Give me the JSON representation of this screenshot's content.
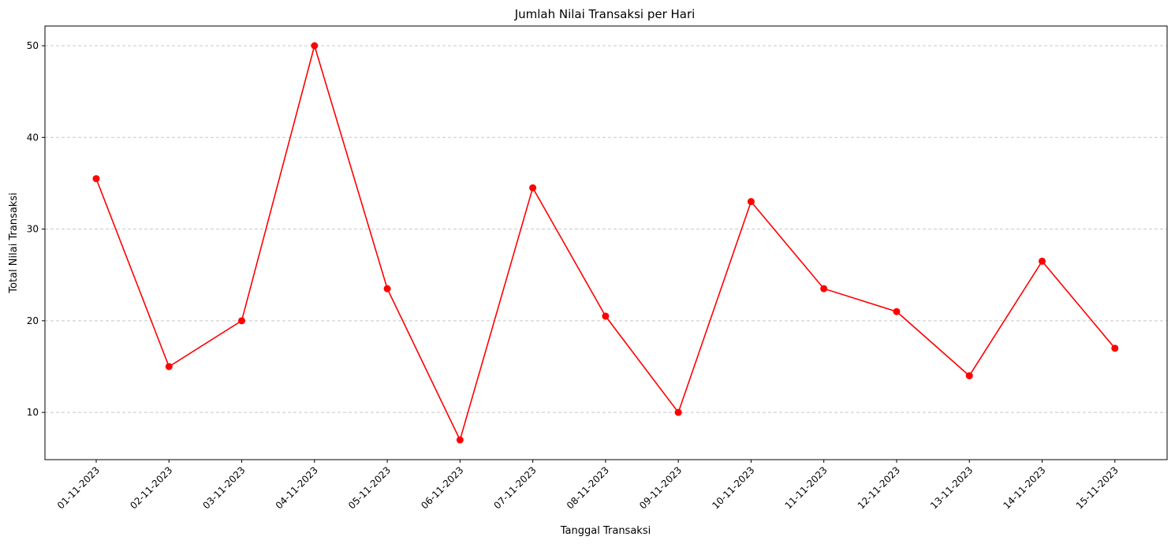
{
  "chart_data": {
    "type": "line",
    "title": "Jumlah Nilai Transaksi per Hari",
    "xlabel": "Tanggal Transaksi",
    "ylabel": "Total Nilai Transaksi",
    "categories": [
      "01-11-2023",
      "02-11-2023",
      "03-11-2023",
      "04-11-2023",
      "05-11-2023",
      "06-11-2023",
      "07-11-2023",
      "08-11-2023",
      "09-11-2023",
      "10-11-2023",
      "11-11-2023",
      "12-11-2023",
      "13-11-2023",
      "14-11-2023",
      "15-11-2023"
    ],
    "series": [
      {
        "values": [
          35.5,
          15,
          20,
          50,
          23.5,
          7,
          34.5,
          20.5,
          10,
          33,
          23.5,
          21,
          14,
          26.5,
          17
        ],
        "color": "#ff0000",
        "marker": "circle"
      }
    ],
    "ylim": [
      4.85,
      52.15
    ],
    "yticks": [
      10,
      20,
      30,
      40,
      50
    ],
    "grid": {
      "y": true,
      "style": "dashed",
      "color": "#c8c8c8"
    },
    "xtick_rotation": 45
  }
}
